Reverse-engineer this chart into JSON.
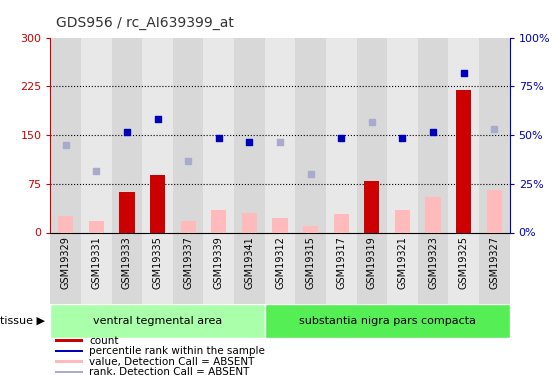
{
  "title": "GDS956 / rc_AI639399_at",
  "samples": [
    "GSM19329",
    "GSM19331",
    "GSM19333",
    "GSM19335",
    "GSM19337",
    "GSM19339",
    "GSM19341",
    "GSM19312",
    "GSM19315",
    "GSM19317",
    "GSM19319",
    "GSM19321",
    "GSM19323",
    "GSM19325",
    "GSM19327"
  ],
  "tissue_groups": [
    {
      "name": "ventral tegmental area",
      "count": 7,
      "color": "#aaffaa"
    },
    {
      "name": "substantia nigra pars compacta",
      "count": 8,
      "color": "#55ee55"
    }
  ],
  "bar_values": [
    25,
    18,
    62,
    88,
    18,
    35,
    30,
    22,
    10,
    28,
    80,
    35,
    55,
    220,
    65
  ],
  "bar_absent": [
    true,
    true,
    false,
    false,
    true,
    true,
    true,
    true,
    true,
    true,
    false,
    true,
    true,
    false,
    true
  ],
  "rank_values": [
    135,
    95,
    155,
    175,
    110,
    145,
    140,
    140,
    90,
    145,
    170,
    145,
    155,
    245,
    160
  ],
  "rank_absent": [
    true,
    true,
    false,
    false,
    true,
    false,
    false,
    true,
    true,
    false,
    true,
    false,
    false,
    false,
    true
  ],
  "ylim_left": [
    0,
    300
  ],
  "ylim_right": [
    0,
    100
  ],
  "yticks_left": [
    0,
    75,
    150,
    225,
    300
  ],
  "yticks_right": [
    0,
    25,
    50,
    75,
    100
  ],
  "hlines": [
    75,
    150,
    225
  ],
  "bar_color_present": "#cc0000",
  "bar_color_absent": "#ffbbbb",
  "rank_color_present": "#0000bb",
  "rank_color_absent": "#aaaacc",
  "left_axis_color": "#cc0000",
  "right_axis_color": "#0000bb",
  "cell_bg_odd": "#d8d8d8",
  "cell_bg_even": "#e8e8e8",
  "bg_figure": "#ffffff",
  "legend_items": [
    {
      "color": "#cc0000",
      "label": "count"
    },
    {
      "color": "#0000bb",
      "label": "percentile rank within the sample"
    },
    {
      "color": "#ffbbbb",
      "label": "value, Detection Call = ABSENT"
    },
    {
      "color": "#aaaacc",
      "label": "rank, Detection Call = ABSENT"
    }
  ]
}
